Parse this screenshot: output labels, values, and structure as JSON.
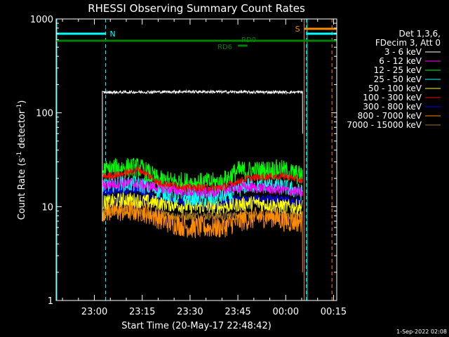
{
  "chart_data": {
    "type": "line",
    "title": "RHESSI Observing Summary Count Rates",
    "xlabel": "Start Time (20-May-17 22:48:42)",
    "ylabel_main": "Count Rate (s",
    "ylabel_sup": "-1",
    "ylabel_tail": " detector",
    "ylabel_end": ")",
    "y_scale": "log",
    "ylim": [
      1,
      1000
    ],
    "y_ticks": [
      {
        "value": 1,
        "label": "1"
      },
      {
        "value": 10,
        "label": "10"
      },
      {
        "value": 100,
        "label": "100"
      },
      {
        "value": 1000,
        "label": "1000"
      }
    ],
    "x_range_minutes": [
      -12,
      76
    ],
    "x_ticks": [
      {
        "minute": 0,
        "label": "23:00"
      },
      {
        "minute": 15,
        "label": "23:15"
      },
      {
        "minute": 30,
        "label": "23:30"
      },
      {
        "minute": 45,
        "label": "23:45"
      },
      {
        "minute": 60,
        "label": "00:00"
      },
      {
        "minute": 75,
        "label": "00:15"
      }
    ],
    "data_start_minute": 2.5,
    "data_end_minute": 65.3,
    "legend_header": [
      "Det 1,3,6,",
      "FDecim 3, Att 0"
    ],
    "series": [
      {
        "name": "3 - 6 keV",
        "color": "#ffffff",
        "points": [
          [
            2.5,
            165
          ],
          [
            10,
            166
          ],
          [
            20,
            167
          ],
          [
            30,
            168
          ],
          [
            40,
            167
          ],
          [
            50,
            166
          ],
          [
            60,
            166
          ],
          [
            65.3,
            166
          ]
        ],
        "noise": 0.015
      },
      {
        "name": "6 - 12 keV",
        "color": "#ff00ff",
        "points": [
          [
            2.5,
            17
          ],
          [
            10,
            18
          ],
          [
            15,
            17
          ],
          [
            25,
            15
          ],
          [
            35,
            14
          ],
          [
            45,
            16
          ],
          [
            50,
            16
          ],
          [
            60,
            15
          ],
          [
            65.3,
            14
          ]
        ],
        "noise": 0.06
      },
      {
        "name": "12 - 25 keV",
        "color": "#00ff00",
        "points": [
          [
            2.5,
            24
          ],
          [
            8,
            26
          ],
          [
            14,
            26
          ],
          [
            20,
            19
          ],
          [
            30,
            18
          ],
          [
            40,
            18
          ],
          [
            45,
            24
          ],
          [
            52,
            24
          ],
          [
            58,
            25
          ],
          [
            65.3,
            21
          ]
        ],
        "noise": 0.11
      },
      {
        "name": "25 - 50 keV",
        "color": "#00ffff",
        "points": [
          [
            2.5,
            17
          ],
          [
            8,
            18
          ],
          [
            15,
            17
          ],
          [
            25,
            13
          ],
          [
            35,
            12
          ],
          [
            42,
            13
          ],
          [
            48,
            17
          ],
          [
            55,
            17
          ],
          [
            60,
            16
          ],
          [
            65.3,
            14
          ]
        ],
        "noise": 0.09
      },
      {
        "name": "50 - 100 keV",
        "color": "#ffff00",
        "points": [
          [
            2.5,
            11
          ],
          [
            10,
            12
          ],
          [
            20,
            11
          ],
          [
            30,
            10
          ],
          [
            40,
            10
          ],
          [
            50,
            11
          ],
          [
            60,
            10
          ],
          [
            65.3,
            10
          ]
        ],
        "noise": 0.08
      },
      {
        "name": "100 - 300 keV",
        "color": "#ff0000",
        "points": [
          [
            2.5,
            21
          ],
          [
            8,
            22
          ],
          [
            14,
            25
          ],
          [
            20,
            18
          ],
          [
            30,
            16
          ],
          [
            40,
            16
          ],
          [
            48,
            20
          ],
          [
            55,
            21
          ],
          [
            60,
            21
          ],
          [
            65.3,
            19
          ]
        ],
        "noise": 0.04
      },
      {
        "name": "300 - 800 keV",
        "color": "#0000ff",
        "points": [
          [
            2.5,
            14
          ],
          [
            8,
            15
          ],
          [
            14,
            15
          ],
          [
            20,
            12
          ],
          [
            30,
            11
          ],
          [
            38,
            10
          ],
          [
            45,
            12
          ],
          [
            52,
            12
          ],
          [
            58,
            12
          ],
          [
            65.3,
            11
          ]
        ],
        "noise": 0.05
      },
      {
        "name": "800 - 7000 keV",
        "color": "#ff8c00",
        "points": [
          [
            2.5,
            9
          ],
          [
            10,
            9
          ],
          [
            15,
            9
          ],
          [
            22,
            7
          ],
          [
            30,
            6
          ],
          [
            40,
            6
          ],
          [
            45,
            7
          ],
          [
            55,
            8
          ],
          [
            60,
            7
          ],
          [
            65.3,
            7
          ]
        ],
        "noise": 0.12
      },
      {
        "name": "7000 - 15000 keV",
        "color": "#a0761e",
        "points": [
          [
            2.5,
            9
          ],
          [
            10,
            9
          ],
          [
            20,
            8
          ],
          [
            30,
            8
          ],
          [
            40,
            8
          ],
          [
            50,
            8
          ],
          [
            60,
            8
          ],
          [
            65.3,
            8
          ]
        ],
        "noise": 0.05
      }
    ],
    "flags": {
      "night": {
        "label": "N",
        "color": "#00ffff",
        "segments": [
          [
            -12,
            3.5
          ],
          [
            66.5,
            76
          ]
        ],
        "boundaries": [
          3.5,
          66.5
        ]
      },
      "saa": {
        "label": "S",
        "color": "#ff8c00",
        "segments": [
          [
            65.8,
            76
          ]
        ],
        "boundaries": [
          65.8,
          74.5
        ]
      },
      "main_bar": {
        "color": "#008000",
        "segments": [
          [
            -12,
            76
          ]
        ]
      },
      "rd": [
        {
          "label": "RD6",
          "color": "#008000",
          "segment": [
            45,
            48
          ]
        },
        {
          "label": "RD0",
          "color": "#008000",
          "segment": null
        }
      ],
      "edge_lines": {
        "color": "#00ffff",
        "minutes": [
          -12,
          66.5
        ]
      }
    },
    "footer_date": "1-Sep-2022 02:08"
  }
}
